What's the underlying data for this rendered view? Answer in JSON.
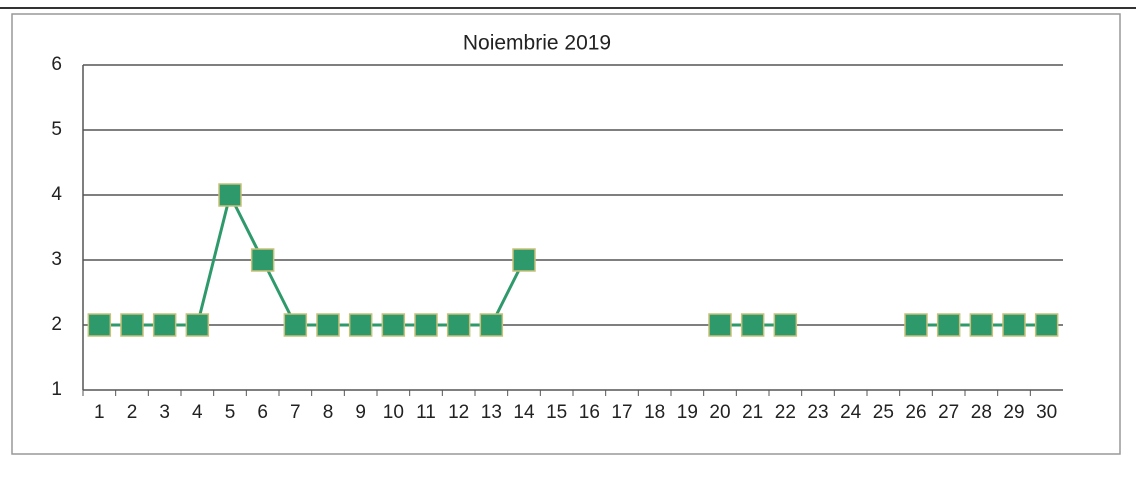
{
  "chart_data": {
    "type": "line",
    "title": "Noiembrie 2019",
    "categories": [
      "1",
      "2",
      "3",
      "4",
      "5",
      "6",
      "7",
      "8",
      "9",
      "10",
      "11",
      "12",
      "13",
      "14",
      "15",
      "16",
      "17",
      "18",
      "19",
      "20",
      "21",
      "22",
      "23",
      "24",
      "25",
      "26",
      "27",
      "28",
      "29",
      "30"
    ],
    "series": [
      {
        "name": "Noiembrie 2019",
        "color": "#2e9a6b",
        "values": [
          2,
          2,
          2,
          2,
          4,
          3,
          2,
          2,
          2,
          2,
          2,
          2,
          2,
          3,
          null,
          null,
          null,
          null,
          null,
          2,
          2,
          2,
          null,
          null,
          null,
          2,
          2,
          2,
          2,
          2
        ]
      }
    ],
    "ylim": [
      1,
      6
    ],
    "yticks": [
      1,
      2,
      3,
      4,
      5,
      6
    ],
    "grid": true
  }
}
